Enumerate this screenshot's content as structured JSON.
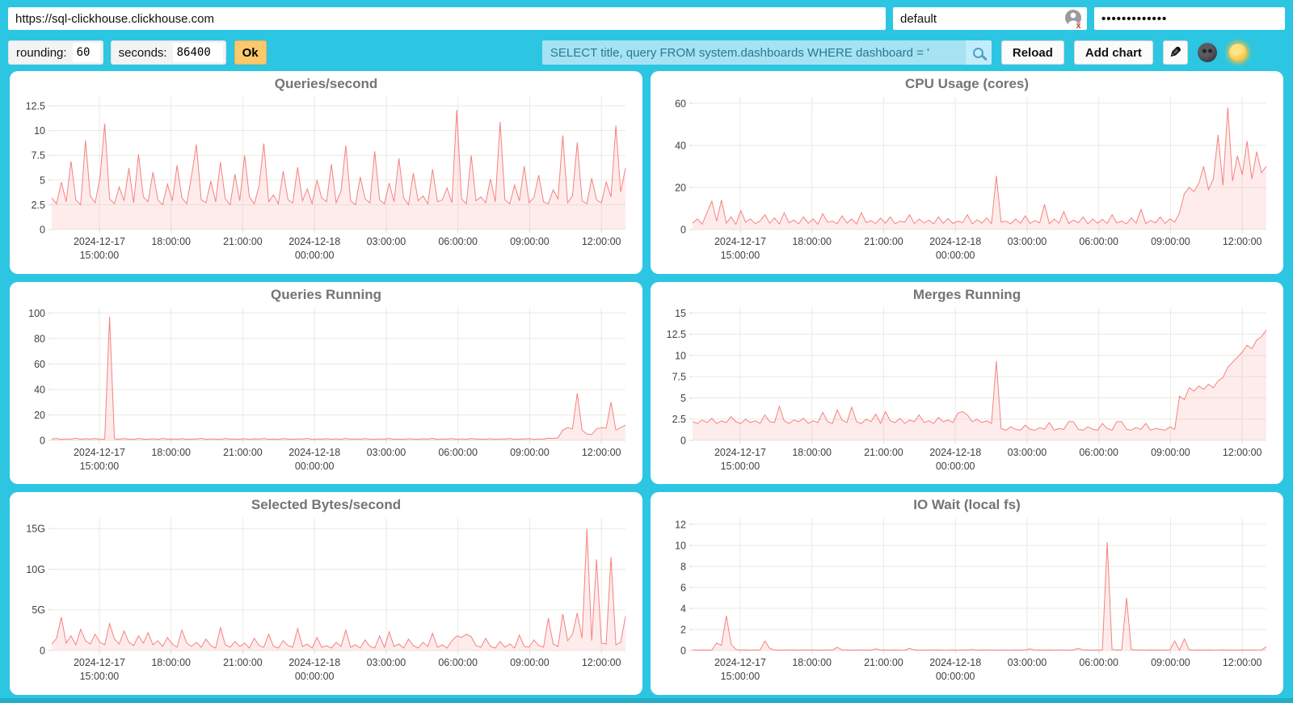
{
  "toolbar": {
    "url": "https://sql-clickhouse.clickhouse.com",
    "user": "default",
    "password_masked": "•••••••••••••",
    "rounding_label": "rounding:",
    "rounding_value": "60",
    "seconds_label": "seconds:",
    "seconds_value": "86400",
    "ok_label": "Ok",
    "query_value": "SELECT title, query FROM system.dashboards WHERE dashboard = '",
    "reload_label": "Reload",
    "add_chart_label": "Add chart"
  },
  "icons": {
    "user_avatar": "broken-image-placeholder",
    "search": "magnifier",
    "edit_glyph": "✎",
    "theme_dark": "new-moon-face",
    "theme_light": "sun-with-face"
  },
  "colors": {
    "background": "#2cc6e2",
    "card": "#ffffff",
    "accent_orange": "#fbc96c",
    "query_bg": "#a5e3f3",
    "query_text": "#29798f",
    "line": "#f5827f",
    "fill": "rgba(246,138,136,0.16)",
    "grid": "#eaeadf",
    "tick": "#d9d9cd",
    "title": "#747474",
    "axis_text": "#3f3f3f"
  },
  "chart_data": [
    {
      "type": "area",
      "title": "Queries/second",
      "ylim": [
        0,
        13.4
      ],
      "yticks": [
        {
          "v": 0,
          "label": "0"
        },
        {
          "v": 2.5,
          "label": "2.5"
        },
        {
          "v": 5,
          "label": "5"
        },
        {
          "v": 7.5,
          "label": "7.5"
        },
        {
          "v": 10,
          "label": "10"
        },
        {
          "v": 12.5,
          "label": "12.5"
        }
      ],
      "xticks": [
        {
          "f": 0.083,
          "lines": [
            "2024-12-17",
            "15:00:00"
          ]
        },
        {
          "f": 0.208,
          "lines": [
            "18:00:00"
          ]
        },
        {
          "f": 0.333,
          "lines": [
            "21:00:00"
          ]
        },
        {
          "f": 0.458,
          "lines": [
            "2024-12-18",
            "00:00:00"
          ]
        },
        {
          "f": 0.583,
          "lines": [
            "03:00:00"
          ]
        },
        {
          "f": 0.708,
          "lines": [
            "06:00:00"
          ]
        },
        {
          "f": 0.833,
          "lines": [
            "09:00:00"
          ]
        },
        {
          "f": 0.958,
          "lines": [
            "12:00:00"
          ]
        }
      ],
      "values": [
        3.2,
        2.6,
        4.8,
        2.8,
        6.9,
        3.0,
        2.5,
        9.0,
        3.4,
        2.7,
        5.2,
        10.7,
        3.1,
        2.6,
        4.3,
        2.9,
        6.2,
        2.7,
        7.6,
        3.3,
        2.8,
        5.8,
        3.0,
        2.5,
        4.6,
        2.9,
        6.5,
        3.2,
        2.6,
        5.4,
        8.6,
        3.0,
        2.7,
        4.9,
        2.8,
        6.8,
        3.1,
        2.5,
        5.6,
        2.9,
        7.5,
        3.3,
        2.6,
        4.4,
        8.7,
        2.8,
        3.5,
        2.6,
        5.9,
        3.0,
        2.7,
        6.3,
        2.9,
        4.1,
        2.6,
        5.0,
        3.2,
        2.8,
        6.6,
        2.7,
        3.9,
        8.5,
        2.9,
        2.5,
        5.3,
        3.1,
        2.7,
        7.9,
        3.0,
        2.6,
        4.7,
        2.8,
        7.2,
        3.2,
        2.5,
        5.7,
        2.9,
        3.4,
        2.6,
        6.1,
        2.8,
        3.0,
        4.2,
        2.7,
        12.1,
        3.1,
        2.6,
        7.5,
        2.9,
        3.3,
        2.7,
        5.1,
        2.8,
        10.9,
        3.0,
        2.6,
        4.5,
        2.9,
        6.4,
        2.7,
        3.2,
        5.5,
        2.8,
        2.6,
        4.0,
        3.1,
        9.5,
        2.7,
        3.4,
        8.8,
        2.9,
        2.6,
        5.2,
        3.0,
        2.7,
        4.8,
        3.3,
        10.5,
        3.8,
        6.2
      ]
    },
    {
      "type": "area",
      "title": "CPU Usage (cores)",
      "ylim": [
        0,
        63
      ],
      "yticks": [
        {
          "v": 0,
          "label": "0"
        },
        {
          "v": 20,
          "label": "20"
        },
        {
          "v": 40,
          "label": "40"
        },
        {
          "v": 60,
          "label": "60"
        }
      ],
      "xticks": [
        {
          "f": 0.083,
          "lines": [
            "2024-12-17",
            "15:00:00"
          ]
        },
        {
          "f": 0.208,
          "lines": [
            "18:00:00"
          ]
        },
        {
          "f": 0.333,
          "lines": [
            "21:00:00"
          ]
        },
        {
          "f": 0.458,
          "lines": [
            "2024-12-18",
            "00:00:00"
          ]
        },
        {
          "f": 0.583,
          "lines": [
            "03:00:00"
          ]
        },
        {
          "f": 0.708,
          "lines": [
            "06:00:00"
          ]
        },
        {
          "f": 0.833,
          "lines": [
            "09:00:00"
          ]
        },
        {
          "f": 0.958,
          "lines": [
            "12:00:00"
          ]
        }
      ],
      "values": [
        3,
        5,
        2.5,
        8,
        13.5,
        4,
        14,
        3,
        6,
        2.5,
        9,
        3.5,
        5,
        2.8,
        4,
        7,
        3,
        5.5,
        2.6,
        8,
        3.2,
        4.5,
        2.7,
        6,
        3,
        5,
        2.5,
        7.5,
        3.4,
        4,
        2.8,
        6.5,
        3,
        5,
        2.6,
        8,
        3.3,
        4.2,
        2.9,
        5.5,
        3,
        6,
        2.7,
        4,
        3.5,
        7,
        2.8,
        5,
        3.1,
        4.4,
        2.6,
        6,
        3,
        5.2,
        2.9,
        4,
        3.2,
        7,
        2.7,
        4.6,
        3,
        5.5,
        2.8,
        25.5,
        3.5,
        4,
        2.6,
        5,
        3,
        6.5,
        2.9,
        4.2,
        3.1,
        12,
        2.7,
        5,
        3,
        8.5,
        2.8,
        4.5,
        3.2,
        6,
        2.6,
        5,
        3,
        4.8,
        2.9,
        7,
        3.1,
        4,
        2.7,
        5.5,
        3,
        9.5,
        2.8,
        4.3,
        3.2,
        6,
        2.9,
        5,
        3.5,
        8,
        17,
        20,
        18,
        22,
        30,
        19,
        24,
        45,
        21,
        58,
        23,
        35,
        26,
        42,
        24,
        37,
        27,
        30
      ]
    },
    {
      "type": "area",
      "title": "Queries Running",
      "ylim": [
        0,
        104
      ],
      "yticks": [
        {
          "v": 0,
          "label": "0"
        },
        {
          "v": 20,
          "label": "20"
        },
        {
          "v": 40,
          "label": "40"
        },
        {
          "v": 60,
          "label": "60"
        },
        {
          "v": 80,
          "label": "80"
        },
        {
          "v": 100,
          "label": "100"
        }
      ],
      "xticks": [
        {
          "f": 0.083,
          "lines": [
            "2024-12-17",
            "15:00:00"
          ]
        },
        {
          "f": 0.208,
          "lines": [
            "18:00:00"
          ]
        },
        {
          "f": 0.333,
          "lines": [
            "21:00:00"
          ]
        },
        {
          "f": 0.458,
          "lines": [
            "2024-12-18",
            "00:00:00"
          ]
        },
        {
          "f": 0.583,
          "lines": [
            "03:00:00"
          ]
        },
        {
          "f": 0.708,
          "lines": [
            "06:00:00"
          ]
        },
        {
          "f": 0.833,
          "lines": [
            "09:00:00"
          ]
        },
        {
          "f": 0.958,
          "lines": [
            "12:00:00"
          ]
        }
      ],
      "values": [
        1,
        1.5,
        0.8,
        1.2,
        1,
        1.8,
        0.9,
        1.3,
        1,
        1.5,
        0.8,
        1.1,
        97,
        1.2,
        0.9,
        1.4,
        1,
        0.8,
        1.6,
        1,
        0.9,
        1.3,
        0.8,
        1.5,
        1,
        1.2,
        0.9,
        1.4,
        0.8,
        1.1,
        1,
        1.6,
        0.9,
        1.2,
        1,
        0.8,
        1.5,
        1,
        1.1,
        0.9,
        1.3,
        0.8,
        1.2,
        1,
        1.5,
        0.9,
        1.1,
        0.8,
        1.4,
        1,
        0.9,
        1.2,
        1,
        1.6,
        0.8,
        1.1,
        1,
        1.3,
        0.9,
        1.2,
        0.8,
        1.5,
        1,
        1.1,
        0.9,
        1.4,
        1,
        0.8,
        1.2,
        1,
        1.5,
        0.9,
        1.1,
        0.8,
        1.3,
        1,
        0.9,
        1.2,
        1,
        1.6,
        0.8,
        1.1,
        1,
        1.4,
        0.9,
        1.2,
        0.8,
        1.5,
        1,
        1.1,
        0.9,
        1.3,
        0.8,
        1.2,
        1,
        1.5,
        0.9,
        1.1,
        1,
        1.4,
        0.8,
        1.2,
        1,
        1.8,
        1.5,
        2,
        8,
        10,
        9,
        37,
        8,
        5,
        4.5,
        9,
        10,
        9.5,
        30,
        8,
        10,
        12
      ]
    },
    {
      "type": "area",
      "title": "Merges Running",
      "ylim": [
        0,
        15.6
      ],
      "yticks": [
        {
          "v": 0,
          "label": "0"
        },
        {
          "v": 2.5,
          "label": "2.5"
        },
        {
          "v": 5,
          "label": "5"
        },
        {
          "v": 7.5,
          "label": "7.5"
        },
        {
          "v": 10,
          "label": "10"
        },
        {
          "v": 12.5,
          "label": "12.5"
        },
        {
          "v": 15,
          "label": "15"
        }
      ],
      "xticks": [
        {
          "f": 0.083,
          "lines": [
            "2024-12-17",
            "15:00:00"
          ]
        },
        {
          "f": 0.208,
          "lines": [
            "18:00:00"
          ]
        },
        {
          "f": 0.333,
          "lines": [
            "21:00:00"
          ]
        },
        {
          "f": 0.458,
          "lines": [
            "2024-12-18",
            "00:00:00"
          ]
        },
        {
          "f": 0.583,
          "lines": [
            "03:00:00"
          ]
        },
        {
          "f": 0.708,
          "lines": [
            "06:00:00"
          ]
        },
        {
          "f": 0.833,
          "lines": [
            "09:00:00"
          ]
        },
        {
          "f": 0.958,
          "lines": [
            "12:00:00"
          ]
        }
      ],
      "values": [
        2.2,
        2.0,
        2.4,
        2.1,
        2.6,
        2.0,
        2.3,
        2.1,
        2.8,
        2.2,
        2.0,
        2.5,
        2.1,
        2.3,
        2.0,
        3.0,
        2.2,
        2.1,
        4.0,
        2.3,
        2.0,
        2.4,
        2.2,
        2.6,
        2.0,
        2.3,
        2.1,
        3.3,
        2.2,
        2.0,
        3.6,
        2.4,
        2.1,
        3.9,
        2.2,
        2.0,
        2.5,
        2.2,
        3.1,
        2.0,
        3.4,
        2.3,
        2.1,
        2.6,
        2.0,
        2.4,
        2.2,
        3.0,
        2.1,
        2.3,
        2.0,
        2.7,
        2.2,
        2.4,
        2.1,
        3.2,
        3.4,
        3.0,
        2.2,
        2.5,
        2.1,
        2.3,
        2.0,
        9.3,
        1.4,
        1.2,
        1.6,
        1.3,
        1.2,
        1.8,
        1.3,
        1.2,
        1.5,
        1.3,
        2.1,
        1.2,
        1.4,
        1.3,
        2.2,
        2.2,
        1.3,
        1.2,
        1.6,
        1.3,
        1.2,
        2.0,
        1.4,
        1.2,
        2.2,
        2.2,
        1.3,
        1.2,
        1.5,
        1.3,
        2.0,
        1.2,
        1.4,
        1.3,
        1.2,
        1.6,
        1.3,
        5.2,
        4.8,
        6.2,
        5.8,
        6.4,
        6.0,
        6.6,
        6.2,
        7.0,
        7.4,
        8.6,
        9.2,
        9.8,
        10.4,
        11.2,
        10.8,
        11.8,
        12.2,
        13.0
      ]
    },
    {
      "type": "area",
      "title": "Selected Bytes/second",
      "ylim": [
        0,
        16.3
      ],
      "yticks": [
        {
          "v": 0,
          "label": "0"
        },
        {
          "v": 5,
          "label": "5G"
        },
        {
          "v": 10,
          "label": "10G"
        },
        {
          "v": 15,
          "label": "15G"
        }
      ],
      "xticks": [
        {
          "f": 0.083,
          "lines": [
            "2024-12-17",
            "15:00:00"
          ]
        },
        {
          "f": 0.208,
          "lines": [
            "18:00:00"
          ]
        },
        {
          "f": 0.333,
          "lines": [
            "21:00:00"
          ]
        },
        {
          "f": 0.458,
          "lines": [
            "2024-12-18",
            "00:00:00"
          ]
        },
        {
          "f": 0.583,
          "lines": [
            "03:00:00"
          ]
        },
        {
          "f": 0.708,
          "lines": [
            "06:00:00"
          ]
        },
        {
          "f": 0.833,
          "lines": [
            "09:00:00"
          ]
        },
        {
          "f": 0.958,
          "lines": [
            "12:00:00"
          ]
        }
      ],
      "values": [
        0.8,
        1.5,
        4.1,
        0.9,
        1.8,
        0.7,
        2.6,
        1.2,
        0.8,
        2.0,
        1.0,
        0.7,
        3.3,
        1.4,
        0.8,
        2.4,
        1.0,
        0.6,
        1.8,
        0.9,
        2.2,
        0.7,
        1.2,
        0.5,
        1.6,
        0.8,
        0.4,
        2.5,
        0.9,
        0.5,
        1.0,
        0.4,
        1.4,
        0.6,
        0.3,
        2.8,
        0.7,
        0.4,
        1.1,
        0.5,
        0.9,
        0.3,
        1.5,
        0.6,
        0.4,
        2.0,
        0.5,
        0.3,
        1.2,
        0.6,
        0.4,
        2.7,
        0.5,
        0.8,
        0.3,
        1.6,
        0.4,
        0.6,
        0.3,
        1.0,
        0.5,
        2.5,
        0.4,
        0.7,
        0.3,
        1.3,
        0.5,
        0.3,
        1.8,
        0.4,
        2.3,
        0.5,
        0.8,
        0.3,
        1.4,
        0.6,
        0.3,
        1.0,
        0.5,
        2.1,
        0.4,
        0.7,
        0.3,
        1.2,
        1.8,
        1.6,
        2.0,
        1.7,
        0.6,
        0.4,
        1.5,
        0.5,
        0.3,
        1.1,
        0.4,
        0.8,
        0.3,
        1.9,
        0.5,
        0.4,
        1.3,
        0.6,
        0.4,
        4.0,
        0.8,
        0.5,
        4.5,
        1.2,
        2.0,
        4.6,
        1.5,
        15.0,
        1.2,
        11.2,
        0.9,
        0.8,
        11.5,
        0.7,
        1.0,
        4.2
      ]
    },
    {
      "type": "area",
      "title": "IO Wait (local fs)",
      "ylim": [
        0,
        12.6
      ],
      "yticks": [
        {
          "v": 0,
          "label": "0"
        },
        {
          "v": 2,
          "label": "2"
        },
        {
          "v": 4,
          "label": "4"
        },
        {
          "v": 6,
          "label": "6"
        },
        {
          "v": 8,
          "label": "8"
        },
        {
          "v": 10,
          "label": "10"
        },
        {
          "v": 12,
          "label": "12"
        }
      ],
      "xticks": [
        {
          "f": 0.083,
          "lines": [
            "2024-12-17",
            "15:00:00"
          ]
        },
        {
          "f": 0.208,
          "lines": [
            "18:00:00"
          ]
        },
        {
          "f": 0.333,
          "lines": [
            "21:00:00"
          ]
        },
        {
          "f": 0.458,
          "lines": [
            "2024-12-18",
            "00:00:00"
          ]
        },
        {
          "f": 0.583,
          "lines": [
            "03:00:00"
          ]
        },
        {
          "f": 0.708,
          "lines": [
            "06:00:00"
          ]
        },
        {
          "f": 0.833,
          "lines": [
            "09:00:00"
          ]
        },
        {
          "f": 0.958,
          "lines": [
            "12:00:00"
          ]
        }
      ],
      "values": [
        0.05,
        0.03,
        0.06,
        0.04,
        0.05,
        0.7,
        0.5,
        3.3,
        0.6,
        0.1,
        0.04,
        0.06,
        0.03,
        0.05,
        0.04,
        0.9,
        0.2,
        0.05,
        0.03,
        0.06,
        0.04,
        0.05,
        0.03,
        0.06,
        0.04,
        0.05,
        0.03,
        0.04,
        0.06,
        0.03,
        0.3,
        0.05,
        0.04,
        0.03,
        0.06,
        0.04,
        0.05,
        0.03,
        0.15,
        0.04,
        0.05,
        0.03,
        0.06,
        0.04,
        0.03,
        0.2,
        0.05,
        0.04,
        0.03,
        0.06,
        0.04,
        0.05,
        0.03,
        0.04,
        0.06,
        0.03,
        0.05,
        0.04,
        0.1,
        0.03,
        0.05,
        0.04,
        0.06,
        0.03,
        0.05,
        0.04,
        0.03,
        0.06,
        0.04,
        0.05,
        0.15,
        0.03,
        0.05,
        0.04,
        0.06,
        0.03,
        0.05,
        0.04,
        0.03,
        0.06,
        0.2,
        0.04,
        0.05,
        0.03,
        0.06,
        0.04,
        10.3,
        0.1,
        0.04,
        0.05,
        5.0,
        0.1,
        0.04,
        0.06,
        0.03,
        0.05,
        0.04,
        0.06,
        0.03,
        0.05,
        0.9,
        0.04,
        1.1,
        0.05,
        0.03,
        0.06,
        0.04,
        0.05,
        0.03,
        0.04,
        0.06,
        0.04,
        0.05,
        0.03,
        0.06,
        0.04,
        0.05,
        0.03,
        0.04,
        0.35
      ]
    }
  ]
}
